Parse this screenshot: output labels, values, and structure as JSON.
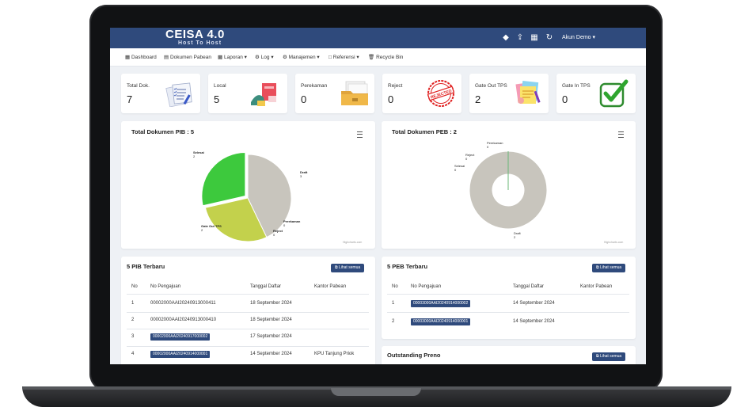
{
  "header": {
    "brand": "CEISA 4.0",
    "brand_sub": "Host To Host",
    "account": "Akun Demo"
  },
  "menu": {
    "items": [
      "Dashboard",
      "Dokumen Pabean",
      "Laporan",
      "Log",
      "Manajemen",
      "Referensi",
      "Recycle Bin"
    ]
  },
  "stats": [
    {
      "label": "Total Dok.",
      "value": "7",
      "icon": "documents-checklist-icon"
    },
    {
      "label": "Local",
      "value": "5",
      "icon": "local-shipping-icon"
    },
    {
      "label": "Perekaman",
      "value": "0",
      "icon": "folder-documents-icon"
    },
    {
      "label": "Reject",
      "value": "0",
      "icon": "rejected-stamp-icon",
      "stamp_text": "REJECTED"
    },
    {
      "label": "Gate Out TPS",
      "value": "2",
      "icon": "gate-out-documents-icon"
    },
    {
      "label": "Gate In TPS",
      "value": "0",
      "icon": "checkmark-icon"
    }
  ],
  "colors": {
    "primary": "#2f4a7c",
    "draft": "#c8c5bd",
    "selesai": "#3dc93d",
    "gate_out": "#c3d14c"
  },
  "chart_pib": {
    "title": "Total Dokumen PIB : 5",
    "credit": "Highcharts.com",
    "labels": [
      {
        "name": "Selesai",
        "value": "2"
      },
      {
        "name": "Draft",
        "value": "3"
      },
      {
        "name": "Perekaman",
        "value": "0"
      },
      {
        "name": "Reject",
        "value": "0"
      },
      {
        "name": "Gate Out TPS",
        "value": "2"
      }
    ]
  },
  "chart_peb": {
    "title": "Total Dokumen PEB : 2",
    "credit": "Highcharts.com",
    "labels": [
      {
        "name": "Perekaman",
        "value": "0"
      },
      {
        "name": "Reject",
        "value": "0"
      },
      {
        "name": "Selesai",
        "value": "0"
      },
      {
        "name": "Draft",
        "value": "2"
      }
    ]
  },
  "chart_data": [
    {
      "type": "pie",
      "title": "Total Dokumen PIB : 5",
      "categories": [
        "Draft",
        "Perekaman",
        "Reject",
        "Gate Out TPS",
        "Selesai"
      ],
      "values": [
        3,
        0,
        0,
        2,
        2
      ],
      "colors": [
        "#c8c5bd",
        "#e07b7b",
        "#7b8fe0",
        "#c3d14c",
        "#3dc93d"
      ]
    },
    {
      "type": "pie",
      "title": "Total Dokumen PEB : 2",
      "donut": true,
      "categories": [
        "Draft",
        "Perekaman",
        "Reject",
        "Selesai"
      ],
      "values": [
        2,
        0,
        0,
        0
      ],
      "colors": [
        "#c8c5bd",
        "#e07b7b",
        "#7b8fe0",
        "#3dc93d"
      ]
    }
  ],
  "pib_table": {
    "title": "5 PIB Terbaru",
    "button": "Lihat semua",
    "columns": [
      "No",
      "No Pengajuan",
      "Tanggal Daftar",
      "Kantor Pabean"
    ],
    "rows": [
      {
        "no": "1",
        "pengajuan": "00002000AAI20240913000411",
        "tanggal": "18 September 2024",
        "kantor": "",
        "tag": false
      },
      {
        "no": "2",
        "pengajuan": "00002000AAI20240913000410",
        "tanggal": "18 September 2024",
        "kantor": "",
        "tag": false
      },
      {
        "no": "3",
        "pengajuan": "00002000AAI20240917000002",
        "tanggal": "17 September 2024",
        "kantor": "",
        "tag": true
      },
      {
        "no": "4",
        "pengajuan": "00002000AAI20240914000001",
        "tanggal": "14 September 2024",
        "kantor": "KPU Tanjung Priok",
        "tag": true
      }
    ]
  },
  "peb_table": {
    "title": "5 PEB Terbaru",
    "button": "Lihat semua",
    "columns": [
      "No",
      "No Pengajuan",
      "Tanggal Daftar",
      "Kantor Pabean"
    ],
    "rows": [
      {
        "no": "1",
        "pengajuan": "00003000AAI20240914000002",
        "tanggal": "14 September 2024",
        "kantor": "",
        "tag": true
      },
      {
        "no": "2",
        "pengajuan": "00003000AAI20240914000001",
        "tanggal": "14 September 2024",
        "kantor": "",
        "tag": true
      }
    ]
  },
  "preno": {
    "title": "Outstanding Preno",
    "button": "Lihat semua"
  }
}
